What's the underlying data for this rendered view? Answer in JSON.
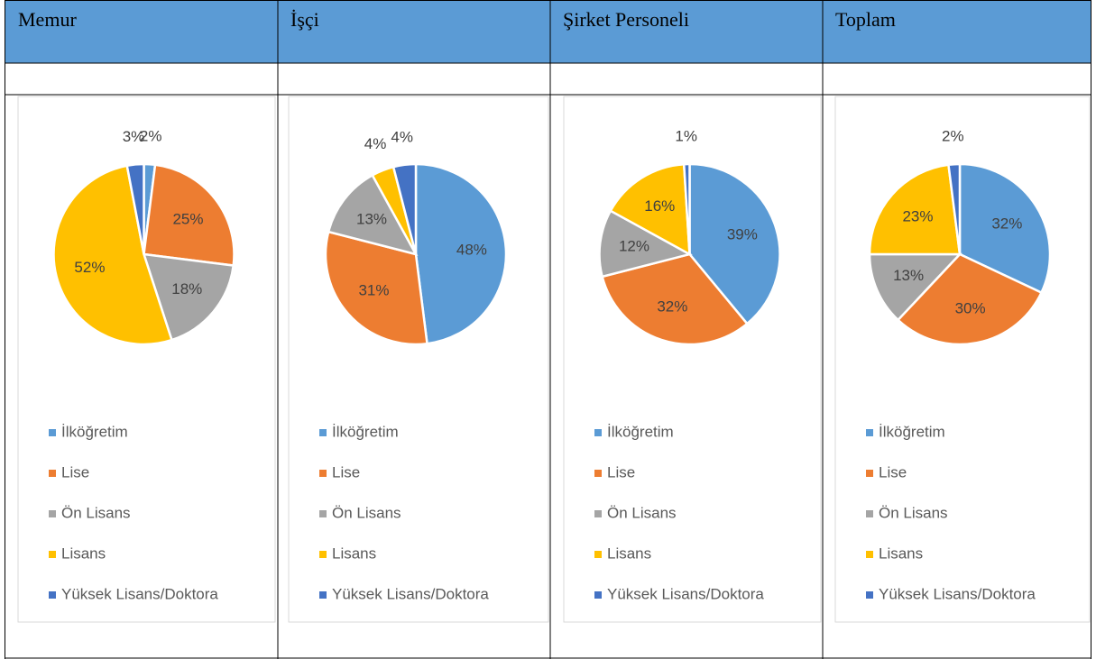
{
  "table": {
    "headers": [
      "Memur",
      "İşçi",
      "Şirket Personeli",
      "Toplam"
    ]
  },
  "chart_data": [
    {
      "type": "pie",
      "categories": [
        "İlköğretim",
        "Lise",
        "Ön Lisans",
        "Lisans",
        "Yüksek Lisans/Doktora"
      ],
      "values": [
        2,
        25,
        18,
        52,
        3
      ],
      "value_labels": [
        "2%",
        "25%",
        "18%",
        "52%",
        "3%"
      ],
      "colors": [
        "#5b9bd5",
        "#ed7d31",
        "#a5a5a5",
        "#ffc000",
        "#4472c4"
      ],
      "legend": "bottom"
    },
    {
      "type": "pie",
      "categories": [
        "İlköğretim",
        "Lise",
        "Ön Lisans",
        "Lisans",
        "Yüksek Lisans/Doktora"
      ],
      "values": [
        48,
        31,
        13,
        4,
        4
      ],
      "value_labels": [
        "48%",
        "31%",
        "13%",
        "4%",
        "4%"
      ],
      "colors": [
        "#5b9bd5",
        "#ed7d31",
        "#a5a5a5",
        "#ffc000",
        "#4472c4"
      ],
      "legend": "bottom"
    },
    {
      "type": "pie",
      "categories": [
        "İlköğretim",
        "Lise",
        "Ön Lisans",
        "Lisans",
        "Yüksek Lisans/Doktora"
      ],
      "values": [
        39,
        32,
        12,
        16,
        1
      ],
      "value_labels": [
        "39%",
        "32%",
        "12%",
        "16%",
        "1%"
      ],
      "colors": [
        "#5b9bd5",
        "#ed7d31",
        "#a5a5a5",
        "#ffc000",
        "#4472c4"
      ],
      "legend": "bottom"
    },
    {
      "type": "pie",
      "categories": [
        "İlköğretim",
        "Lise",
        "Ön Lisans",
        "Lisans",
        "Yüksek Lisans/Doktora"
      ],
      "values": [
        32,
        30,
        13,
        23,
        2
      ],
      "value_labels": [
        "32%",
        "30%",
        "13%",
        "23%",
        "2%"
      ],
      "colors": [
        "#5b9bd5",
        "#ed7d31",
        "#a5a5a5",
        "#ffc000",
        "#4472c4"
      ],
      "legend": "bottom"
    }
  ]
}
